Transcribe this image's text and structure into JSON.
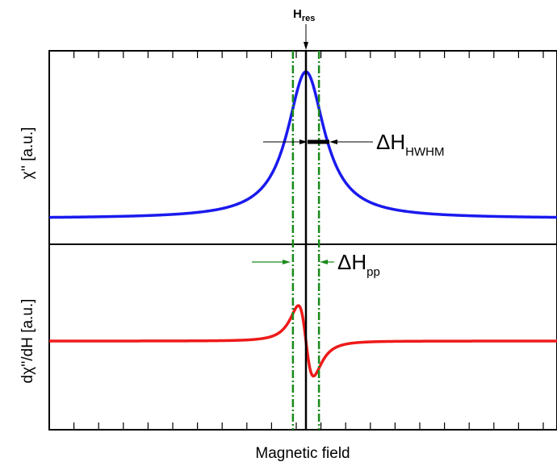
{
  "chart_data": {
    "type": "line",
    "xlabel": "Magnetic field",
    "x_ticks_labeled": false,
    "panels": [
      {
        "id": "absorption",
        "ylabel": "χ'' [a.u.]",
        "series": [
          {
            "color": "#1a1aee",
            "shape": "lorentzian absorption",
            "x": [
              -1.0,
              -0.5,
              -0.3,
              -0.2,
              -0.1,
              -0.05,
              0.0,
              0.05,
              0.1,
              0.2,
              0.3,
              0.5,
              1.0
            ],
            "y": [
              0.01,
              0.04,
              0.1,
              0.2,
              0.5,
              0.8,
              1.0,
              0.8,
              0.5,
              0.2,
              0.1,
              0.04,
              0.01
            ]
          }
        ]
      },
      {
        "id": "derivative",
        "ylabel": "dχ''/dH [a.u.]",
        "series": [
          {
            "color": "#ee1a1a",
            "shape": "lorentzian derivative",
            "x": [
              -1.0,
              -0.3,
              -0.15,
              -0.058,
              0.0,
              0.058,
              0.15,
              0.3,
              1.0
            ],
            "y": [
              0.0,
              0.05,
              0.3,
              1.0,
              0.0,
              -1.0,
              -0.3,
              -0.05,
              0.0
            ]
          }
        ]
      }
    ],
    "annotations": {
      "resonance": {
        "label": "H",
        "subscript": "res",
        "x": 0.0
      },
      "linewidth_hwhm": {
        "label": "ΔH",
        "subscript": "HWHM",
        "x_from": 0.0,
        "x_to": 0.1
      },
      "linewidth_pp": {
        "label": "ΔH",
        "subscript": "pp",
        "x_from": -0.058,
        "x_to": 0.058
      }
    },
    "colors": {
      "absorption": "#1a1aee",
      "derivative": "#ee1a1a",
      "guides": "#1a8a1a",
      "axes": "#000000"
    }
  }
}
